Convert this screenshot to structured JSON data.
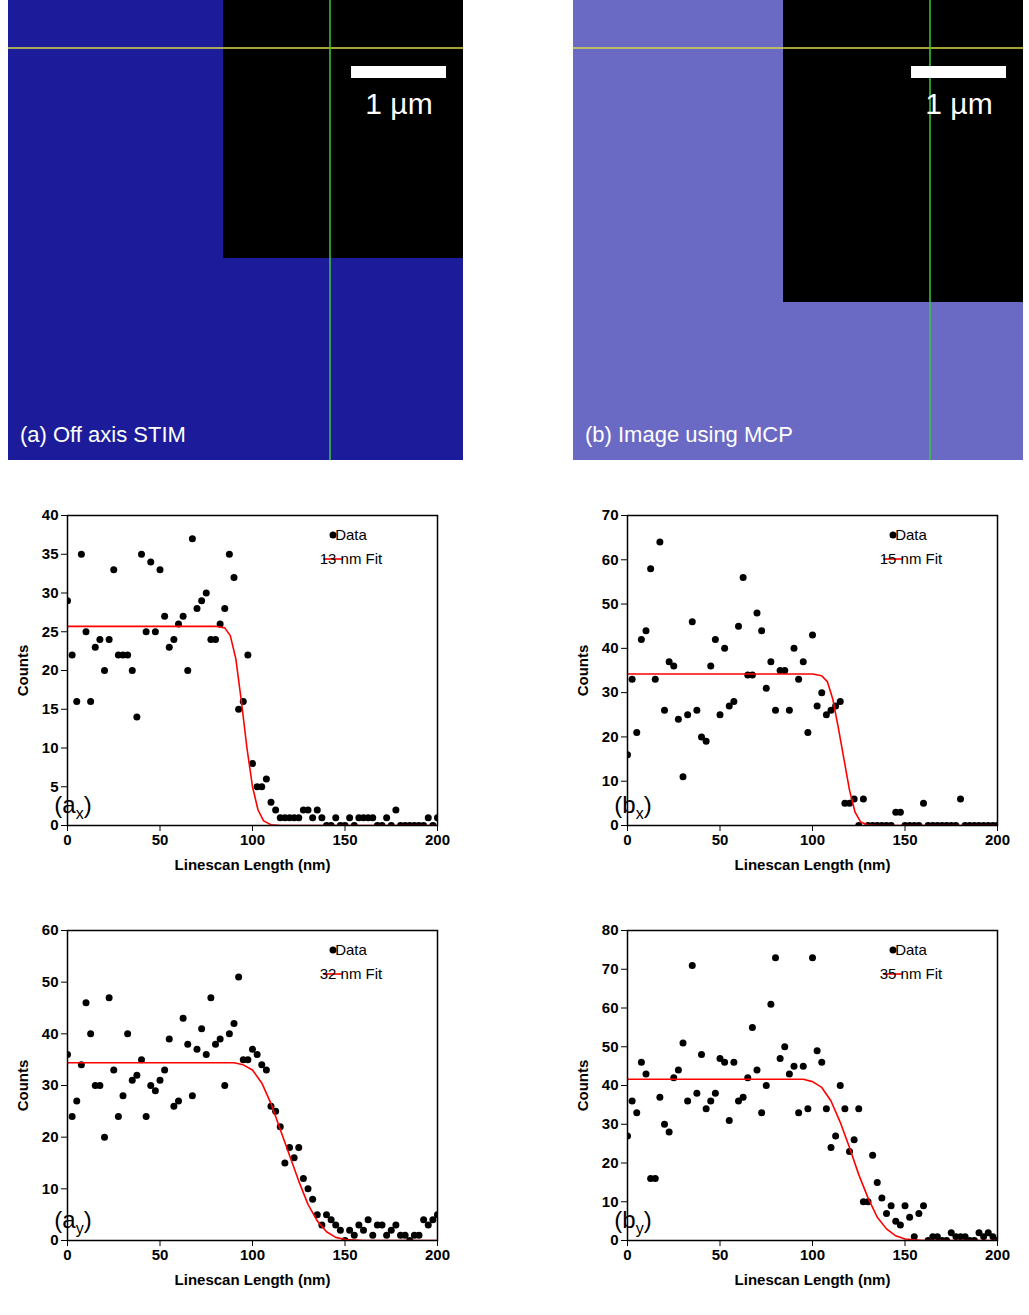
{
  "chart_data": [
    {
      "type": "scatter",
      "panel_label": {
        "text": "(a",
        "subscript": "x",
        "after": ")"
      },
      "xlabel": "Linescan Length (nm)",
      "ylabel": "Counts",
      "xlim": [
        0,
        200
      ],
      "xticks": [
        0,
        50,
        100,
        150,
        200
      ],
      "ylim": [
        0,
        40
      ],
      "yticks": [
        0,
        5,
        10,
        15,
        20,
        25,
        30,
        35,
        40
      ],
      "legend": "upper right",
      "series": [
        {
          "name": "Data",
          "type": "scatter",
          "marker": "circle",
          "color": "#000000",
          "x": [
            0,
            2.5,
            5,
            7.5,
            10,
            12.5,
            15,
            17.5,
            20,
            22.5,
            25,
            27.5,
            30,
            32.5,
            35,
            37.5,
            40,
            42.5,
            45,
            47.5,
            50,
            52.5,
            55,
            57.5,
            60,
            62.5,
            65,
            67.5,
            70,
            72.5,
            75,
            77.5,
            80,
            82.5,
            85,
            87.5,
            90,
            92.5,
            95,
            97.5,
            100,
            102.5,
            105,
            107.5,
            110,
            112.5,
            115,
            117.5,
            120,
            122.5,
            125,
            127.5,
            130,
            132.5,
            135,
            137.5,
            140,
            142.5,
            145,
            147.5,
            150,
            152.5,
            155,
            157.5,
            160,
            162.5,
            165,
            167.5,
            170,
            172.5,
            175,
            177.5,
            180,
            182.5,
            185,
            187.5,
            190,
            192.5,
            195,
            197.5,
            200
          ],
          "values": [
            29,
            22,
            16,
            35,
            25,
            16,
            23,
            24,
            20,
            24,
            33,
            22,
            22,
            22,
            20,
            14,
            35,
            25,
            34,
            25,
            33,
            27,
            23,
            24,
            26,
            27,
            20,
            37,
            28,
            29,
            30,
            24,
            24,
            26,
            28,
            35,
            32,
            15,
            16,
            22,
            8,
            5,
            5,
            6,
            3,
            2,
            1,
            1,
            1,
            1,
            1,
            2,
            2,
            1,
            2,
            1,
            0,
            0,
            1,
            0,
            0,
            1,
            0,
            1,
            1,
            1,
            1,
            0,
            0,
            1,
            0,
            2,
            0,
            0,
            0,
            0,
            0,
            0,
            1,
            0,
            1
          ]
        },
        {
          "name": "13 nm Fit",
          "type": "line",
          "line_style": "solid",
          "color": "#ff0000",
          "x": [
            0,
            80,
            85,
            88,
            91,
            94,
            97,
            100,
            103,
            106,
            110,
            115,
            200
          ],
          "values": [
            25.7,
            25.7,
            25.5,
            24.5,
            21.5,
            16,
            10,
            5,
            2,
            0.6,
            0.1,
            0,
            0
          ]
        }
      ]
    },
    {
      "type": "scatter",
      "panel_label": {
        "text": "(b",
        "subscript": "x",
        "after": ")"
      },
      "xlabel": "Linescan Length (nm)",
      "ylabel": "Counts",
      "xlim": [
        0,
        200
      ],
      "xticks": [
        0,
        50,
        100,
        150,
        200
      ],
      "ylim": [
        0,
        70
      ],
      "yticks": [
        0,
        10,
        20,
        30,
        40,
        50,
        60,
        70
      ],
      "legend": "upper right",
      "series": [
        {
          "name": "Data",
          "type": "scatter",
          "marker": "circle",
          "color": "#000000",
          "x": [
            0,
            2.5,
            5,
            7.5,
            10,
            12.5,
            15,
            17.5,
            20,
            22.5,
            25,
            27.5,
            30,
            32.5,
            35,
            37.5,
            40,
            42.5,
            45,
            47.5,
            50,
            52.5,
            55,
            57.5,
            60,
            62.5,
            65,
            67.5,
            70,
            72.5,
            75,
            77.5,
            80,
            82.5,
            85,
            87.5,
            90,
            92.5,
            95,
            97.5,
            100,
            102.5,
            105,
            107.5,
            110,
            112.5,
            115,
            117.5,
            120,
            122.5,
            125,
            127.5,
            130,
            132.5,
            135,
            137.5,
            140,
            142.5,
            145,
            147.5,
            150,
            152.5,
            155,
            157.5,
            160,
            162.5,
            165,
            167.5,
            170,
            172.5,
            175,
            177.5,
            180,
            182.5,
            185,
            187.5,
            190,
            192.5,
            195,
            197.5,
            200
          ],
          "values": [
            16,
            33,
            21,
            42,
            44,
            58,
            33,
            64,
            26,
            37,
            36,
            24,
            11,
            25,
            46,
            26,
            20,
            19,
            36,
            42,
            25,
            40,
            27,
            28,
            45,
            56,
            34,
            34,
            48,
            44,
            31,
            37,
            26,
            35,
            35,
            26,
            40,
            33,
            37,
            21,
            43,
            27,
            30,
            25,
            26,
            27,
            28,
            5,
            5,
            6,
            0,
            6,
            0,
            0,
            0,
            0,
            0,
            0,
            3,
            3,
            0,
            0,
            0,
            0,
            5,
            0,
            0,
            0,
            0,
            0,
            0,
            0,
            6,
            0,
            0,
            0,
            0,
            0,
            0,
            0,
            0
          ]
        },
        {
          "name": "15 nm Fit",
          "type": "line",
          "line_style": "solid",
          "color": "#ff0000",
          "x": [
            0,
            100,
            105,
            108,
            111,
            114,
            117,
            120,
            123,
            126,
            130,
            135,
            200
          ],
          "values": [
            34.2,
            34.2,
            33.8,
            32.5,
            28.5,
            22,
            15,
            8,
            3,
            0.8,
            0.1,
            0,
            0
          ]
        }
      ]
    },
    {
      "type": "scatter",
      "panel_label": {
        "text": "(a",
        "subscript": "y",
        "after": ")"
      },
      "xlabel": "Linescan Length (nm)",
      "ylabel": "Counts",
      "xlim": [
        0,
        200
      ],
      "xticks": [
        0,
        50,
        100,
        150,
        200
      ],
      "ylim": [
        0,
        60
      ],
      "yticks": [
        0,
        10,
        20,
        30,
        40,
        50,
        60
      ],
      "legend": "upper right",
      "series": [
        {
          "name": "Data",
          "type": "scatter",
          "marker": "circle",
          "color": "#000000",
          "x": [
            0,
            2.5,
            5,
            7.5,
            10,
            12.5,
            15,
            17.5,
            20,
            22.5,
            25,
            27.5,
            30,
            32.5,
            35,
            37.5,
            40,
            42.5,
            45,
            47.5,
            50,
            52.5,
            55,
            57.5,
            60,
            62.5,
            65,
            67.5,
            70,
            72.5,
            75,
            77.5,
            80,
            82.5,
            85,
            87.5,
            90,
            92.5,
            95,
            97.5,
            100,
            102.5,
            105,
            107.5,
            110,
            112.5,
            115,
            117.5,
            120,
            122.5,
            125,
            127.5,
            130,
            132.5,
            135,
            137.5,
            140,
            142.5,
            145,
            147.5,
            150,
            152.5,
            155,
            157.5,
            160,
            162.5,
            165,
            167.5,
            170,
            172.5,
            175,
            177.5,
            180,
            182.5,
            185,
            187.5,
            190,
            192.5,
            195,
            197.5,
            200
          ],
          "values": [
            36,
            24,
            27,
            34,
            46,
            40,
            30,
            30,
            20,
            47,
            33,
            24,
            28,
            40,
            31,
            32,
            35,
            24,
            30,
            29,
            31,
            33,
            39,
            26,
            27,
            43,
            38,
            28,
            37,
            41,
            36,
            47,
            38,
            39,
            30,
            40,
            42,
            51,
            35,
            35,
            37,
            36,
            34,
            33,
            26,
            25,
            22,
            15,
            18,
            16,
            18,
            12,
            10,
            8,
            5,
            3,
            5,
            4,
            3,
            2,
            0,
            2,
            1,
            3,
            2,
            4,
            1,
            3,
            3,
            1,
            2,
            3,
            1,
            1,
            0,
            1,
            1,
            4,
            3,
            4,
            5
          ]
        },
        {
          "name": "32 nm Fit",
          "type": "line",
          "line_style": "solid",
          "color": "#ff0000",
          "x": [
            0,
            90,
            95,
            100,
            105,
            110,
            115,
            120,
            125,
            130,
            135,
            140,
            145,
            150,
            160,
            200
          ],
          "values": [
            34.4,
            34.4,
            34,
            33,
            30.5,
            26.5,
            21.5,
            16.5,
            11.5,
            7,
            3.8,
            1.7,
            0.6,
            0.2,
            0,
            0
          ]
        }
      ]
    },
    {
      "type": "scatter",
      "panel_label": {
        "text": "(b",
        "subscript": "y",
        "after": ")"
      },
      "xlabel": "Linescan Length (nm)",
      "ylabel": "Counts",
      "xlim": [
        0,
        200
      ],
      "xticks": [
        0,
        50,
        100,
        150,
        200
      ],
      "ylim": [
        0,
        80
      ],
      "yticks": [
        0,
        10,
        20,
        30,
        40,
        50,
        60,
        70,
        80
      ],
      "legend": "upper right",
      "series": [
        {
          "name": "Data",
          "type": "scatter",
          "marker": "circle",
          "color": "#000000",
          "x": [
            0,
            2.5,
            5,
            7.5,
            10,
            12.5,
            15,
            17.5,
            20,
            22.5,
            25,
            27.5,
            30,
            32.5,
            35,
            37.5,
            40,
            42.5,
            45,
            47.5,
            50,
            52.5,
            55,
            57.5,
            60,
            62.5,
            65,
            67.5,
            70,
            72.5,
            75,
            77.5,
            80,
            82.5,
            85,
            87.5,
            90,
            92.5,
            95,
            97.5,
            100,
            102.5,
            105,
            107.5,
            110,
            112.5,
            115,
            117.5,
            120,
            122.5,
            125,
            127.5,
            130,
            132.5,
            135,
            137.5,
            140,
            142.5,
            145,
            147.5,
            150,
            152.5,
            155,
            157.5,
            160,
            162.5,
            165,
            167.5,
            170,
            172.5,
            175,
            177.5,
            180,
            182.5,
            185,
            187.5,
            190,
            192.5,
            195,
            197.5,
            200
          ],
          "values": [
            27,
            36,
            33,
            46,
            43,
            16,
            16,
            37,
            30,
            28,
            42,
            44,
            51,
            36,
            71,
            38,
            48,
            34,
            36,
            38,
            47,
            46,
            31,
            46,
            36,
            37,
            42,
            55,
            44,
            33,
            40,
            61,
            73,
            47,
            50,
            43,
            45,
            33,
            45,
            34,
            73,
            49,
            46,
            34,
            24,
            27,
            40,
            34,
            23,
            26,
            34,
            10,
            10,
            22,
            15,
            11,
            7,
            9,
            5,
            4,
            9,
            6,
            1,
            7,
            9,
            0,
            1,
            1,
            0,
            0,
            2,
            1,
            1,
            1,
            0,
            0,
            2,
            1,
            2,
            1,
            0
          ]
        },
        {
          "name": "35 nm Fit",
          "type": "line",
          "line_style": "solid",
          "color": "#ff0000",
          "x": [
            0,
            95,
            100,
            105,
            110,
            115,
            120,
            125,
            130,
            135,
            140,
            145,
            150,
            160,
            200
          ],
          "values": [
            41.6,
            41.6,
            41,
            39.5,
            36,
            30.5,
            24,
            17,
            11,
            6,
            3,
            1.2,
            0.4,
            0,
            0
          ]
        }
      ]
    }
  ],
  "images": [
    {
      "label": "(a) Off axis STIM",
      "scale_bar": "1 µm"
    },
    {
      "label": "(b) Image using MCP",
      "scale_bar": "1 µm"
    }
  ]
}
